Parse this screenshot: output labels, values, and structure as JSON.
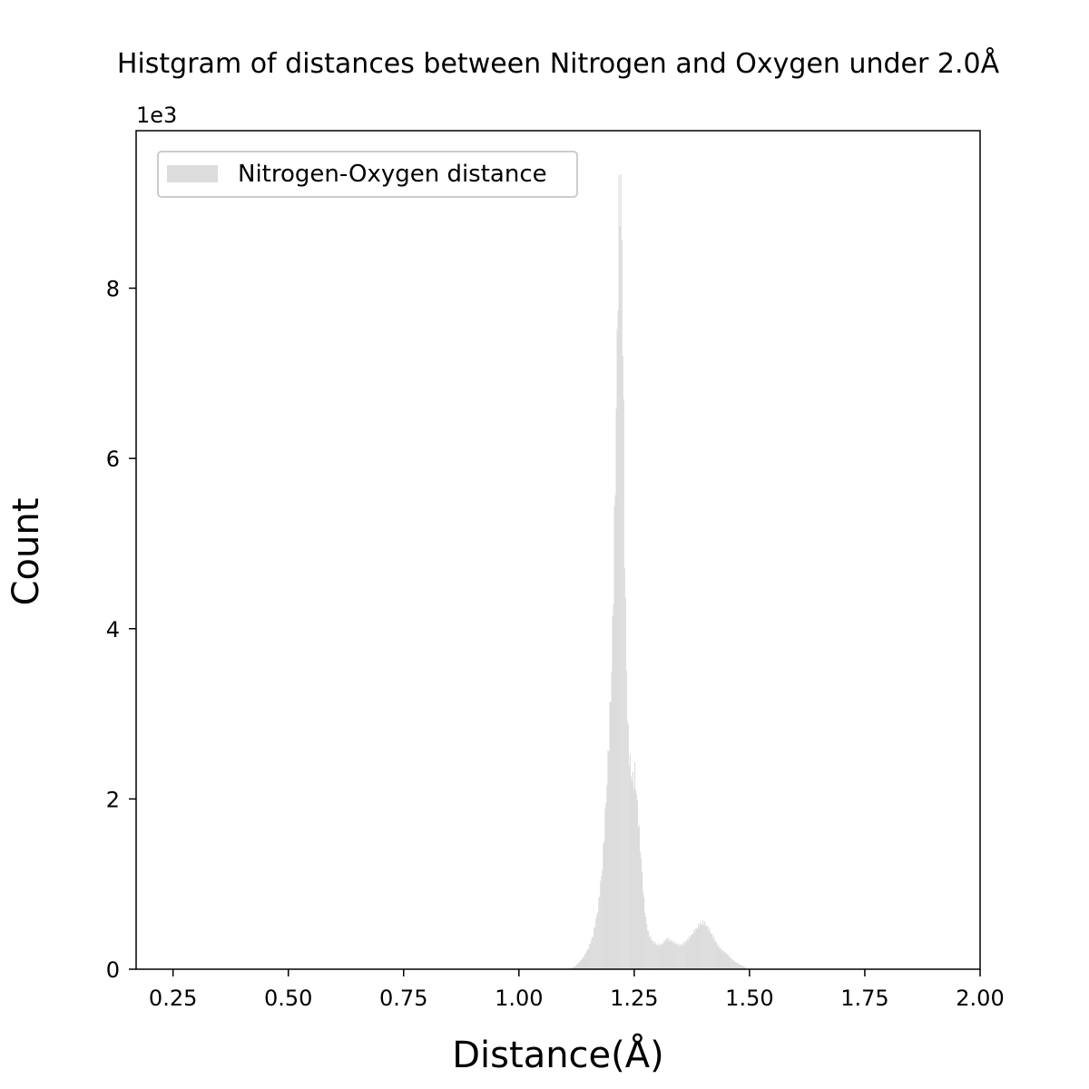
{
  "chart_data": {
    "type": "bar",
    "title": "Histgram of distances between Nitrogen and Oxygen under 2.0Å",
    "xlabel": "Distance(Å)",
    "ylabel": "Count",
    "y_scale_label": "1e3",
    "xlim": [
      0.17,
      2.0
    ],
    "ylim": [
      0,
      9.85
    ],
    "y_multiplier": 1000,
    "xticks": [
      0.25,
      0.5,
      0.75,
      1.0,
      1.25,
      1.5,
      1.75,
      2.0
    ],
    "xtick_labels": [
      "0.25",
      "0.50",
      "0.75",
      "1.00",
      "1.25",
      "1.50",
      "1.75",
      "2.00"
    ],
    "yticks": [
      0,
      2,
      4,
      6,
      8
    ],
    "ytick_labels": [
      "0",
      "2",
      "4",
      "6",
      "8"
    ],
    "grid": false,
    "legend_position": "top-left",
    "bar_color": "#dcdcdc",
    "series": [
      {
        "name": "Nitrogen-Oxygen distance",
        "bin_width": 0.002,
        "x": [
          1.1,
          1.11,
          1.12,
          1.13,
          1.14,
          1.15,
          1.16,
          1.17,
          1.18,
          1.19,
          1.2,
          1.205,
          1.21,
          1.213,
          1.216,
          1.219,
          1.222,
          1.225,
          1.228,
          1.231,
          1.234,
          1.237,
          1.24,
          1.245,
          1.25,
          1.255,
          1.26,
          1.265,
          1.27,
          1.275,
          1.28,
          1.285,
          1.29,
          1.3,
          1.31,
          1.32,
          1.33,
          1.34,
          1.35,
          1.36,
          1.37,
          1.38,
          1.39,
          1.4,
          1.41,
          1.42,
          1.43,
          1.44,
          1.45,
          1.46,
          1.47,
          1.48,
          1.49
        ],
        "y": [
          0.0,
          0.01,
          0.03,
          0.08,
          0.15,
          0.25,
          0.4,
          0.7,
          1.2,
          2.2,
          3.5,
          4.8,
          6.5,
          7.8,
          8.8,
          9.4,
          8.5,
          7.0,
          5.0,
          3.8,
          3.0,
          2.6,
          2.4,
          2.2,
          2.3,
          2.0,
          1.6,
          1.2,
          0.8,
          0.55,
          0.42,
          0.36,
          0.32,
          0.28,
          0.3,
          0.36,
          0.33,
          0.3,
          0.28,
          0.32,
          0.38,
          0.45,
          0.52,
          0.55,
          0.48,
          0.38,
          0.28,
          0.22,
          0.18,
          0.12,
          0.08,
          0.05,
          0.02
        ]
      }
    ]
  }
}
